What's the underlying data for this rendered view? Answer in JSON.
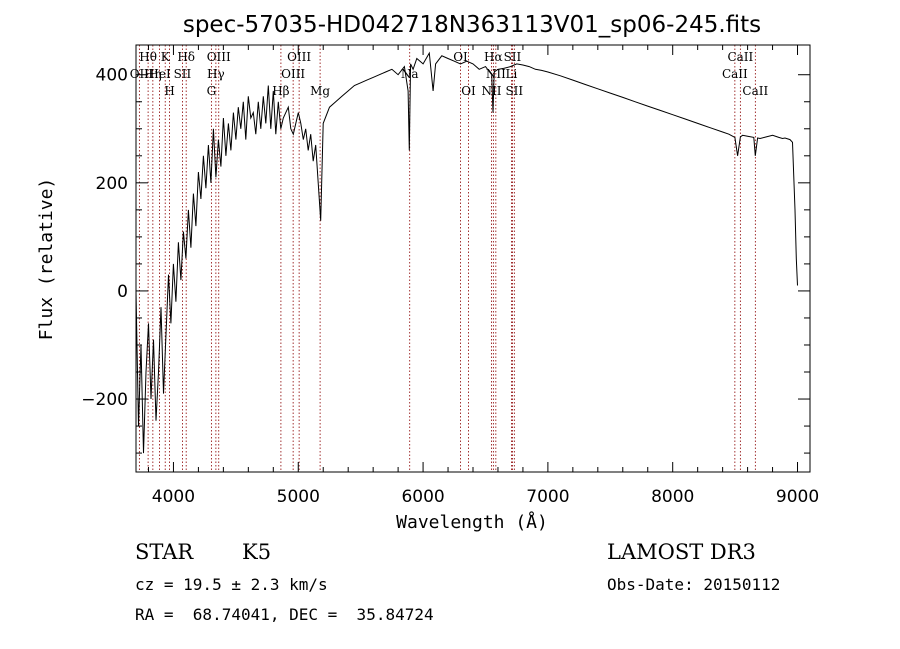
{
  "chart_data": {
    "type": "line",
    "title": "spec-57035-HD042718N363113V01_sp06-245.fits",
    "xlabel": "Wavelength (Å)",
    "ylabel": "Flux (relative)",
    "xlim": [
      3700,
      9100
    ],
    "ylim": [
      -335,
      455
    ],
    "xticks": [
      4000,
      5000,
      6000,
      7000,
      8000,
      9000
    ],
    "yticks": [
      -200,
      0,
      200,
      400
    ],
    "xtick_labels": [
      "4000",
      "5000",
      "6000",
      "7000",
      "8000",
      "9000"
    ],
    "ytick_labels": [
      "−200",
      "0",
      "200",
      "400"
    ],
    "series": [
      {
        "name": "spectrum",
        "x": [
          3700,
          3720,
          3740,
          3760,
          3780,
          3800,
          3820,
          3840,
          3860,
          3880,
          3900,
          3920,
          3940,
          3960,
          3980,
          4000,
          4020,
          4040,
          4060,
          4080,
          4100,
          4120,
          4140,
          4160,
          4180,
          4200,
          4220,
          4240,
          4260,
          4280,
          4300,
          4320,
          4340,
          4360,
          4380,
          4400,
          4420,
          4440,
          4460,
          4480,
          4500,
          4520,
          4540,
          4560,
          4580,
          4600,
          4620,
          4640,
          4660,
          4680,
          4700,
          4720,
          4740,
          4760,
          4780,
          4800,
          4820,
          4840,
          4860,
          4880,
          4900,
          4920,
          4940,
          4960,
          4980,
          5000,
          5020,
          5040,
          5060,
          5080,
          5100,
          5120,
          5140,
          5160,
          5180,
          5200,
          5250,
          5300,
          5350,
          5400,
          5450,
          5500,
          5550,
          5600,
          5650,
          5700,
          5750,
          5800,
          5850,
          5880,
          5890,
          5900,
          5920,
          5950,
          6000,
          6050,
          6080,
          6100,
          6150,
          6200,
          6250,
          6300,
          6350,
          6400,
          6450,
          6500,
          6550,
          6560,
          6570,
          6600,
          6650,
          6700,
          6750,
          6800,
          6850,
          6900,
          6950,
          7000,
          7100,
          7200,
          7300,
          7400,
          7500,
          7600,
          7700,
          7800,
          7900,
          8000,
          8100,
          8200,
          8300,
          8400,
          8450,
          8498,
          8520,
          8542,
          8560,
          8600,
          8650,
          8662,
          8680,
          8700,
          8750,
          8800,
          8850,
          8880,
          8900,
          8940,
          8960,
          8980,
          8990,
          9000
        ],
        "y": [
          0,
          -250,
          -100,
          -300,
          -150,
          -60,
          -200,
          -90,
          -240,
          -150,
          -30,
          -190,
          -80,
          30,
          -60,
          50,
          -20,
          90,
          20,
          110,
          60,
          150,
          80,
          180,
          120,
          220,
          170,
          250,
          190,
          270,
          200,
          300,
          210,
          280,
          230,
          320,
          250,
          310,
          260,
          330,
          280,
          340,
          300,
          350,
          280,
          360,
          320,
          330,
          290,
          350,
          300,
          360,
          310,
          380,
          300,
          370,
          290,
          350,
          300,
          320,
          330,
          340,
          300,
          290,
          310,
          330,
          310,
          280,
          300,
          260,
          290,
          240,
          270,
          200,
          130,
          310,
          340,
          350,
          360,
          370,
          380,
          385,
          390,
          395,
          400,
          405,
          410,
          400,
          415,
          370,
          260,
          420,
          410,
          430,
          420,
          440,
          370,
          420,
          435,
          430,
          425,
          420,
          425,
          420,
          410,
          415,
          400,
          330,
          405,
          410,
          412,
          415,
          420,
          418,
          415,
          410,
          408,
          405,
          398,
          390,
          382,
          374,
          366,
          358,
          350,
          342,
          334,
          326,
          318,
          310,
          302,
          294,
          290,
          284,
          250,
          285,
          288,
          286,
          284,
          250,
          283,
          282,
          285,
          288,
          284,
          282,
          283,
          280,
          275,
          150,
          60,
          10
        ]
      }
    ],
    "spectral_lines": [
      {
        "name": "Hθ",
        "wave": 3797,
        "row": 0
      },
      {
        "name": "OII",
        "wave": 3727,
        "row": 1
      },
      {
        "name": "Hη",
        "wave": 3835,
        "row": 1
      },
      {
        "name": "HeI",
        "wave": 3889,
        "row": 1
      },
      {
        "name": "K",
        "wave": 3934,
        "row": 0
      },
      {
        "name": "H",
        "wave": 3969,
        "row": 2
      },
      {
        "name": "SII",
        "wave": 4072,
        "row": 1
      },
      {
        "name": "Hδ",
        "wave": 4102,
        "row": 0
      },
      {
        "name": "OIII",
        "wave": 4363,
        "row": 0
      },
      {
        "name": "Hγ",
        "wave": 4340,
        "row": 1
      },
      {
        "name": "G",
        "wave": 4304,
        "row": 2
      },
      {
        "name": "Hβ",
        "wave": 4861,
        "row": 2
      },
      {
        "name": "OIII",
        "wave": 4959,
        "row": 1
      },
      {
        "name": "OIII",
        "wave": 5007,
        "row": 0
      },
      {
        "name": "Mg",
        "wave": 5175,
        "row": 2
      },
      {
        "name": "Na",
        "wave": 5893,
        "row": 1
      },
      {
        "name": "OI",
        "wave": 6300,
        "row": 0
      },
      {
        "name": "OI",
        "wave": 6364,
        "row": 2
      },
      {
        "name": "NII",
        "wave": 6548,
        "row": 2
      },
      {
        "name": "Hα",
        "wave": 6563,
        "row": 0
      },
      {
        "name": "NII",
        "wave": 6583,
        "row": 1
      },
      {
        "name": "SII",
        "wave": 6716,
        "row": 0
      },
      {
        "name": "SII",
        "wave": 6731,
        "row": 2
      },
      {
        "name": "Li",
        "wave": 6708,
        "row": 1
      },
      {
        "name": "CaII",
        "wave": 8498,
        "row": 1
      },
      {
        "name": "CaII",
        "wave": 8542,
        "row": 0
      },
      {
        "name": "CaII",
        "wave": 8662,
        "row": 2
      }
    ]
  },
  "info": {
    "object_class": "STAR",
    "subclass": "K5",
    "survey": "LAMOST DR3",
    "cz": "cz = 19.5 ± 2.3 km/s",
    "obs_date": "Obs-Date: 20150112",
    "coords": "RA =  68.74041, DEC =  35.84724"
  },
  "colors": {
    "spectrum": "#000000",
    "line_marker": "#8b0000",
    "axis": "#000000"
  }
}
